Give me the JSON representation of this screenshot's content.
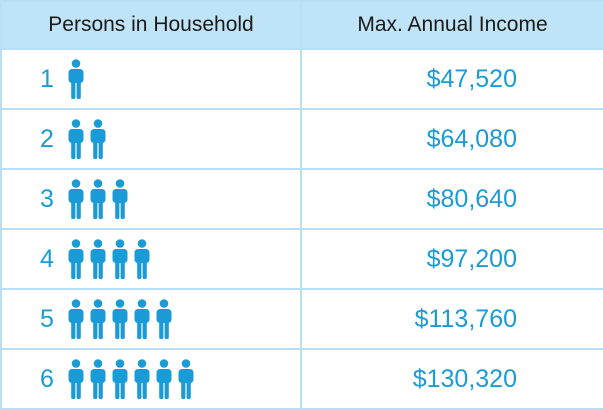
{
  "table": {
    "header": {
      "persons_label": "Persons in Household",
      "income_label": "Max. Annual Income"
    },
    "rows": [
      {
        "persons": "1",
        "income": "$47,520",
        "icon_count": 1
      },
      {
        "persons": "2",
        "income": "$64,080",
        "icon_count": 2
      },
      {
        "persons": "3",
        "income": "$80,640",
        "icon_count": 3
      },
      {
        "persons": "4",
        "income": "$97,200",
        "icon_count": 4
      },
      {
        "persons": "5",
        "income": "$113,760",
        "icon_count": 5
      },
      {
        "persons": "6",
        "income": "$130,320",
        "icon_count": 6
      }
    ]
  },
  "icon": "person-icon",
  "colors": {
    "header_bg": "#bfe4f8",
    "border": "#b8dff4",
    "accent": "#1a9bd6",
    "header_text": "#1a1a1a"
  }
}
